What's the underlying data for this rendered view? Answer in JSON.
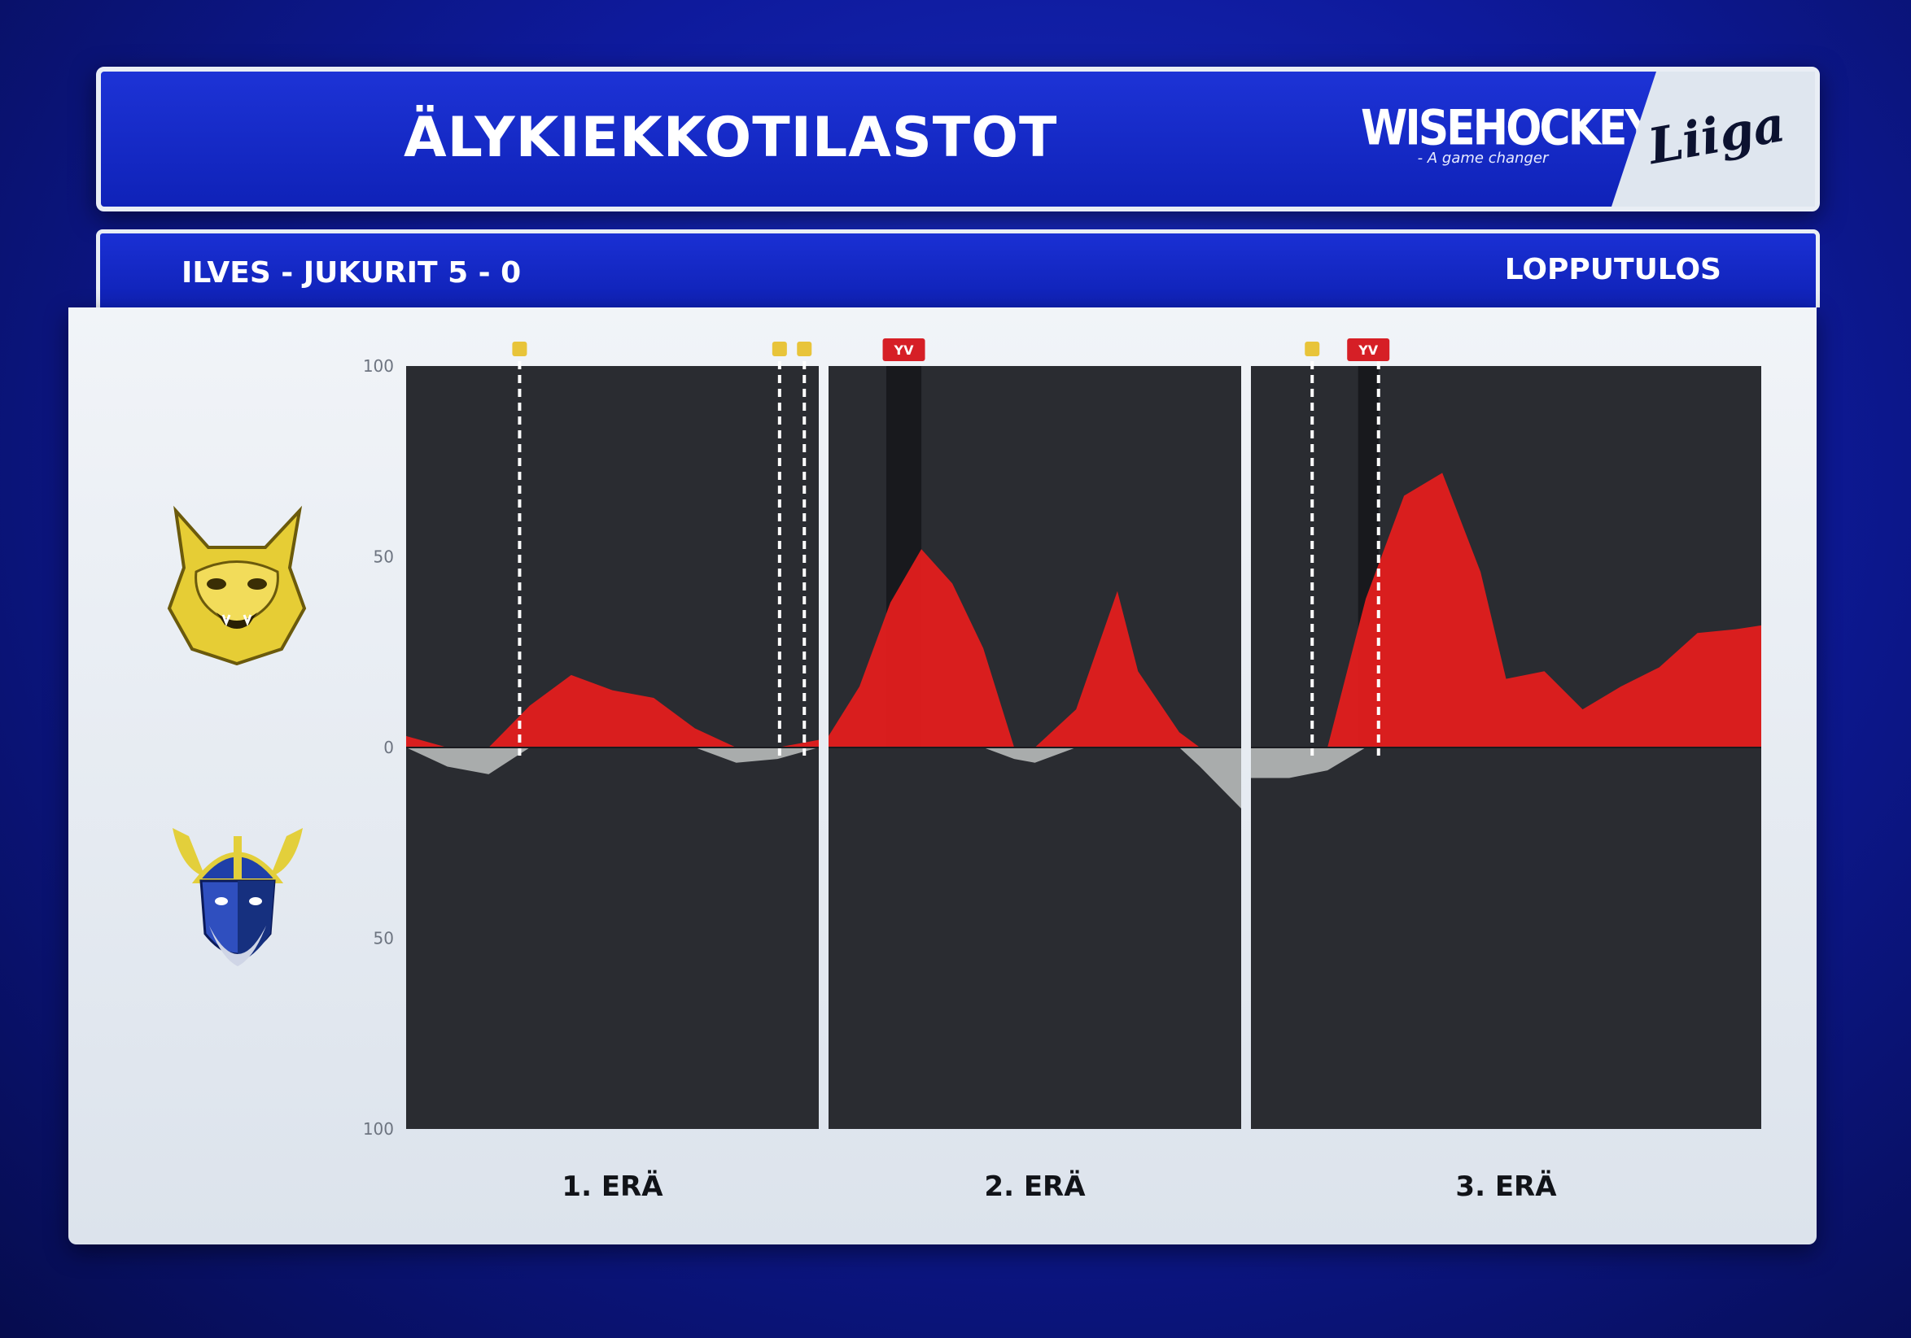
{
  "header": {
    "title": "ÄLYKIEKKOTILASTOT",
    "sponsor_name": "WISEHOCKEY",
    "sponsor_tagline": "- A game changer",
    "league_logo_text": "Liiga"
  },
  "match": {
    "score_line": "ILVES - JUKURIT  5 - 0",
    "status": "LOPPUTULOS"
  },
  "teams": {
    "home_logo": "lynx-head-logo",
    "away_logo": "viking-head-logo"
  },
  "colors": {
    "home_momentum": "#e31e1e",
    "away_momentum": "#bfc3c2",
    "plot_background": "#2a2c31",
    "goal_marker": "#e8c43a",
    "powerplay_marker": "#d61f26"
  },
  "chart_data": {
    "type": "area",
    "y_axis": {
      "range": [
        -100,
        100
      ],
      "tick_labels": [
        "100",
        "50",
        "0",
        "50",
        "100"
      ],
      "note_positive": "home (top)",
      "note_negative": "away (bottom)"
    },
    "periods": [
      {
        "label": "1. ERÄ",
        "x": [
          0,
          2,
          4,
          6,
          8,
          10,
          12,
          14,
          16,
          18,
          20
        ],
        "values": [
          3,
          -5,
          -7,
          11,
          19,
          15,
          13,
          5,
          -4,
          -3,
          2
        ],
        "goals": [
          5.5,
          18.1,
          19.3
        ],
        "powerplays": []
      },
      {
        "label": "2. ERÄ",
        "x": [
          0,
          1.5,
          3,
          4.5,
          6,
          7.5,
          9,
          10,
          12,
          14,
          15,
          17,
          18,
          20
        ],
        "values": [
          3,
          16,
          38,
          52,
          43,
          26,
          -3,
          -4,
          10,
          41,
          20,
          4,
          -5,
          -16
        ],
        "goals": [],
        "powerplays": [
          {
            "label": "YV",
            "start": 2.8,
            "end": 4.5
          }
        ]
      },
      {
        "label": "3. ERÄ",
        "x": [
          0,
          1.5,
          3,
          4.5,
          6,
          7.5,
          9,
          10,
          11.5,
          13,
          14.5,
          16,
          17.5,
          19,
          20
        ],
        "values": [
          -8,
          -8,
          -6,
          39,
          66,
          72,
          46,
          18,
          20,
          10,
          16,
          21,
          30,
          31,
          32
        ],
        "goals": [
          2.4,
          5.0
        ],
        "powerplays": [
          {
            "label": "YV",
            "start": 4.2,
            "end": 5.0
          }
        ]
      }
    ]
  }
}
